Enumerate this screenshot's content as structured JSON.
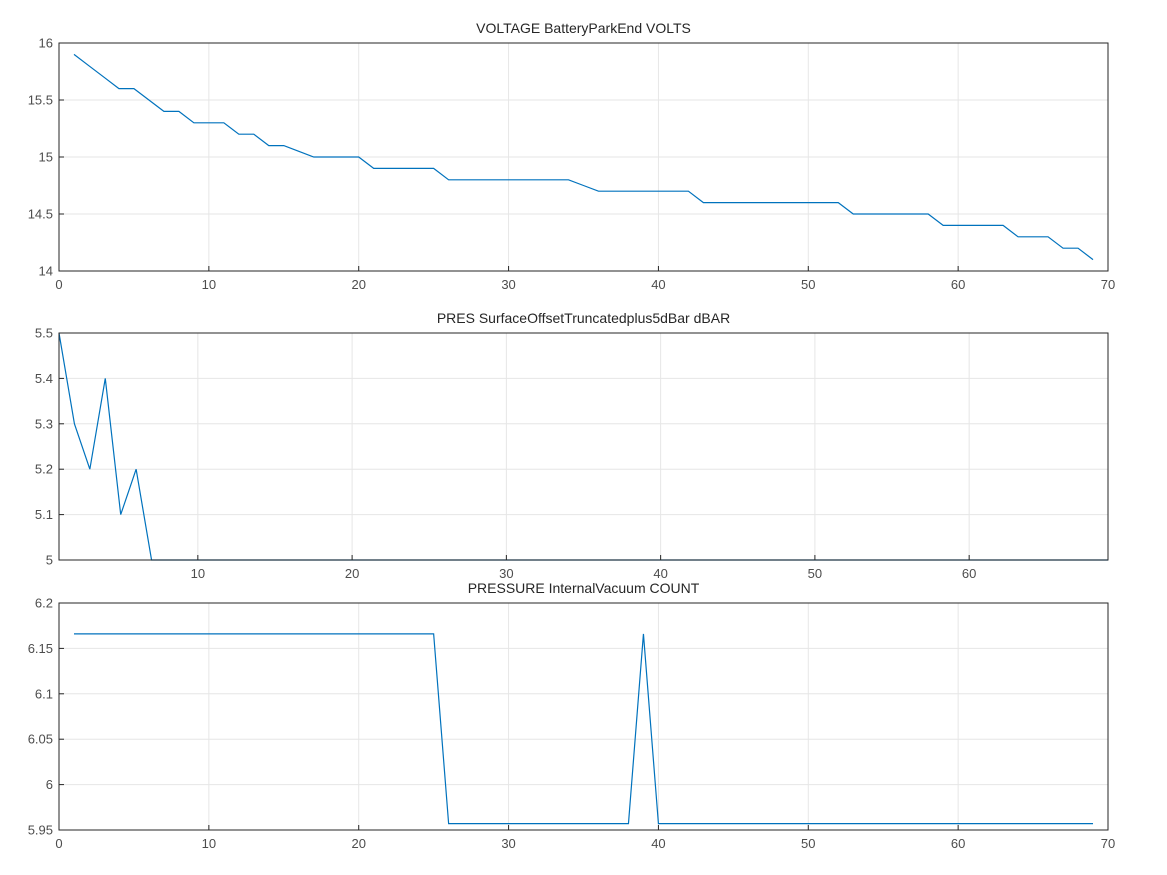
{
  "chart_data": [
    {
      "type": "line",
      "title": "VOLTAGE BatteryParkEnd VOLTS",
      "xlabel": "",
      "ylabel": "",
      "xlim": [
        0,
        70
      ],
      "ylim": [
        14,
        16
      ],
      "xticks": [
        0,
        10,
        20,
        30,
        40,
        50,
        60,
        70
      ],
      "xtick_labels": [
        "0",
        "10",
        "20",
        "30",
        "40",
        "50",
        "60",
        "70"
      ],
      "yticks": [
        14,
        14.5,
        15,
        15.5,
        16
      ],
      "ytick_labels": [
        "14",
        "14.5",
        "15",
        "15.5",
        "16"
      ],
      "grid": true,
      "color": "#0072bd",
      "series": [
        {
          "x": [
            1,
            2,
            3,
            4,
            5,
            6,
            7,
            8,
            9,
            10,
            11,
            12,
            13,
            14,
            15,
            16,
            17,
            18,
            19,
            20,
            21,
            22,
            23,
            24,
            25,
            26,
            27,
            28,
            29,
            30,
            31,
            32,
            33,
            34,
            35,
            36,
            37,
            38,
            39,
            40,
            41,
            42,
            43,
            44,
            45,
            46,
            47,
            48,
            49,
            50,
            51,
            52,
            53,
            54,
            55,
            56,
            57,
            58,
            59,
            60,
            61,
            62,
            63,
            64,
            65,
            66,
            67,
            68,
            69
          ],
          "y": [
            15.9,
            15.8,
            15.7,
            15.6,
            15.6,
            15.5,
            15.4,
            15.4,
            15.3,
            15.3,
            15.3,
            15.2,
            15.2,
            15.1,
            15.1,
            15.05,
            15.0,
            15.0,
            15.0,
            15.0,
            14.9,
            14.9,
            14.9,
            14.9,
            14.9,
            14.8,
            14.8,
            14.8,
            14.8,
            14.8,
            14.8,
            14.8,
            14.8,
            14.8,
            14.75,
            14.7,
            14.7,
            14.7,
            14.7,
            14.7,
            14.7,
            14.7,
            14.6,
            14.6,
            14.6,
            14.6,
            14.6,
            14.6,
            14.6,
            14.6,
            14.6,
            14.6,
            14.5,
            14.5,
            14.5,
            14.5,
            14.5,
            14.5,
            14.4,
            14.4,
            14.4,
            14.4,
            14.4,
            14.3,
            14.3,
            14.3,
            14.2,
            14.2,
            14.1
          ]
        }
      ]
    },
    {
      "type": "line",
      "title": "PRES SurfaceOffsetTruncatedplus5dBar dBAR",
      "xlabel": "",
      "ylabel": "",
      "xlim": [
        1,
        69
      ],
      "ylim": [
        5,
        5.5
      ],
      "xticks": [
        10,
        20,
        30,
        40,
        50,
        60
      ],
      "xtick_labels": [
        "10",
        "20",
        "30",
        "40",
        "50",
        "60"
      ],
      "yticks": [
        5,
        5.1,
        5.2,
        5.3,
        5.4,
        5.5
      ],
      "ytick_labels": [
        "5",
        "5.1",
        "5.2",
        "5.3",
        "5.4",
        "5.5"
      ],
      "grid": true,
      "color": "#0072bd",
      "series": [
        {
          "x": [
            1,
            2,
            3,
            4,
            5,
            6,
            7,
            8,
            9,
            10,
            11,
            12,
            13,
            14,
            15,
            16,
            17,
            18,
            19,
            20,
            21,
            22,
            23,
            24,
            25,
            26,
            27,
            28,
            29,
            30,
            31,
            32,
            33,
            34,
            35,
            36,
            37,
            38,
            39,
            40,
            41,
            42,
            43,
            44,
            45,
            46,
            47,
            48,
            49,
            50,
            51,
            52,
            53,
            54,
            55,
            56,
            57,
            58,
            59,
            60,
            61,
            62,
            63,
            64,
            65,
            66,
            67,
            68,
            69
          ],
          "y": [
            5.5,
            5.3,
            5.2,
            5.4,
            5.1,
            5.2,
            5,
            5,
            5,
            5,
            5,
            5,
            5,
            5,
            5,
            5,
            5,
            5,
            5,
            5,
            5,
            5,
            5,
            5,
            5,
            5,
            5,
            5,
            5,
            5,
            5,
            5,
            5,
            5,
            5,
            5,
            5,
            5,
            5,
            5,
            5,
            5,
            5,
            5,
            5,
            5,
            5,
            5,
            5,
            5,
            5,
            5,
            5,
            5,
            5,
            5,
            5,
            5,
            5,
            5,
            5,
            5,
            5,
            5,
            5,
            5,
            5,
            5,
            5
          ]
        }
      ]
    },
    {
      "type": "line",
      "title": "PRESSURE InternalVacuum COUNT",
      "xlabel": "",
      "ylabel": "",
      "xlim": [
        0,
        70
      ],
      "ylim": [
        5.95,
        6.2
      ],
      "xticks": [
        0,
        10,
        20,
        30,
        40,
        50,
        60,
        70
      ],
      "xtick_labels": [
        "0",
        "10",
        "20",
        "30",
        "40",
        "50",
        "60",
        "70"
      ],
      "yticks": [
        5.95,
        6,
        6.05,
        6.1,
        6.15,
        6.2
      ],
      "ytick_labels": [
        "5.95",
        "6",
        "6.05",
        "6.1",
        "6.15",
        "6.2"
      ],
      "grid": true,
      "color": "#0072bd",
      "series": [
        {
          "x": [
            1,
            2,
            3,
            4,
            5,
            6,
            7,
            8,
            9,
            10,
            11,
            12,
            13,
            14,
            15,
            16,
            17,
            18,
            19,
            20,
            21,
            22,
            23,
            24,
            25,
            26,
            27,
            28,
            29,
            30,
            31,
            32,
            33,
            34,
            35,
            36,
            37,
            38,
            39,
            40,
            41,
            42,
            43,
            44,
            45,
            46,
            47,
            48,
            49,
            50,
            51,
            52,
            53,
            54,
            55,
            56,
            57,
            58,
            59,
            60,
            61,
            62,
            63,
            64,
            65,
            66,
            67,
            68,
            69
          ],
          "y": [
            6.166,
            6.166,
            6.166,
            6.166,
            6.166,
            6.166,
            6.166,
            6.166,
            6.166,
            6.166,
            6.166,
            6.166,
            6.166,
            6.166,
            6.166,
            6.166,
            6.166,
            6.166,
            6.166,
            6.166,
            6.166,
            6.166,
            6.166,
            6.166,
            6.166,
            5.957,
            5.957,
            5.957,
            5.957,
            5.957,
            5.957,
            5.957,
            5.957,
            5.957,
            5.957,
            5.957,
            5.957,
            5.957,
            6.166,
            5.957,
            5.957,
            5.957,
            5.957,
            5.957,
            5.957,
            5.957,
            5.957,
            5.957,
            5.957,
            5.957,
            5.957,
            5.957,
            5.957,
            5.957,
            5.957,
            5.957,
            5.957,
            5.957,
            5.957,
            5.957,
            5.957,
            5.957,
            5.957,
            5.957,
            5.957,
            5.957,
            5.957,
            5.957,
            5.957
          ]
        }
      ]
    }
  ]
}
